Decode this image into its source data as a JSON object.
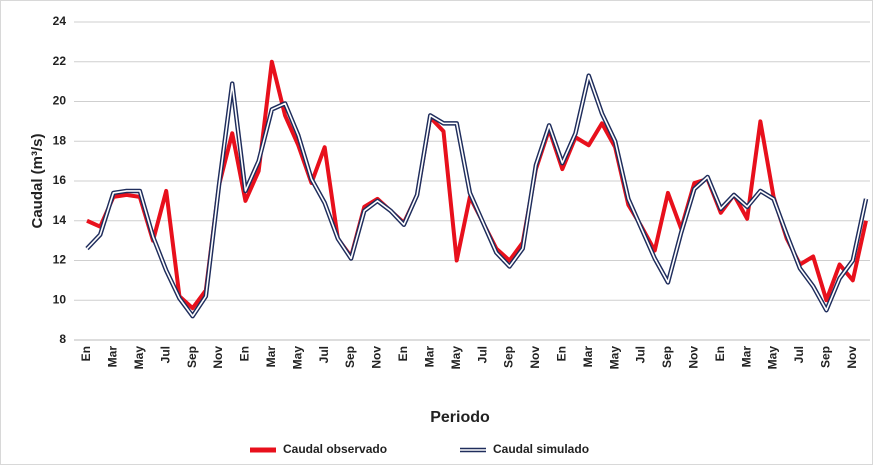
{
  "chart_data": {
    "type": "line",
    "y_label": "Caudal (m³/s)",
    "x_label": "Periodo",
    "categories": [
      "En",
      null,
      "Mar",
      null,
      "May",
      null,
      "Jul",
      null,
      "Sep",
      null,
      "Nov",
      null,
      "En",
      null,
      "Mar",
      null,
      "May",
      null,
      "Jul",
      null,
      "Sep",
      null,
      "Nov",
      null,
      "En",
      null,
      "Mar",
      null,
      "May",
      null,
      "Jul",
      null,
      "Sep",
      null,
      "Nov",
      null,
      "En",
      null,
      "Mar",
      null,
      "May",
      null,
      "Jul",
      null,
      "Sep",
      null,
      "Nov",
      null,
      "En",
      null,
      "Mar",
      null,
      "May",
      null,
      "Jul",
      null,
      "Sep",
      null,
      "Nov",
      null
    ],
    "series": [
      {
        "name": "Caudal observado",
        "color": "#e8101c",
        "values": [
          14.0,
          13.7,
          15.2,
          15.3,
          15.2,
          13.0,
          15.5,
          10.2,
          9.6,
          10.5,
          15.8,
          18.4,
          15.0,
          16.5,
          22.0,
          19.3,
          17.8,
          15.9,
          17.7,
          13.1,
          12.2,
          14.7,
          15.1,
          14.5,
          13.9,
          15.3,
          19.2,
          18.5,
          12.0,
          15.2,
          13.9,
          12.6,
          12.0,
          12.9,
          16.6,
          18.6,
          16.6,
          18.2,
          17.8,
          18.9,
          17.7,
          14.8,
          13.7,
          12.5,
          15.4,
          13.6,
          15.9,
          16.1,
          14.4,
          15.3,
          14.1,
          19.0,
          15.2,
          13.1,
          11.8,
          12.2,
          10.0,
          11.8,
          11.0,
          14.0
        ]
      },
      {
        "name": "Caudal simulado",
        "color": "#1f2d5c",
        "values": [
          12.6,
          13.3,
          15.4,
          15.5,
          15.5,
          13.2,
          11.5,
          10.1,
          9.2,
          10.2,
          15.8,
          20.9,
          15.5,
          17.0,
          19.6,
          19.9,
          18.3,
          16.1,
          14.9,
          13.1,
          12.1,
          14.5,
          15.0,
          14.5,
          13.8,
          15.3,
          19.3,
          18.9,
          18.9,
          15.4,
          13.9,
          12.4,
          11.7,
          12.6,
          16.8,
          18.8,
          16.9,
          18.4,
          21.3,
          19.4,
          18.0,
          15.1,
          13.6,
          12.1,
          10.9,
          13.4,
          15.6,
          16.2,
          14.6,
          15.3,
          14.7,
          15.5,
          15.1,
          13.3,
          11.6,
          10.7,
          9.5,
          11.1,
          12.0,
          15.1
        ]
      }
    ],
    "ylim": [
      8,
      24
    ],
    "yticks": [
      8,
      10,
      12,
      14,
      16,
      18,
      20,
      22,
      24
    ],
    "grid": true,
    "legend": "bottom"
  }
}
